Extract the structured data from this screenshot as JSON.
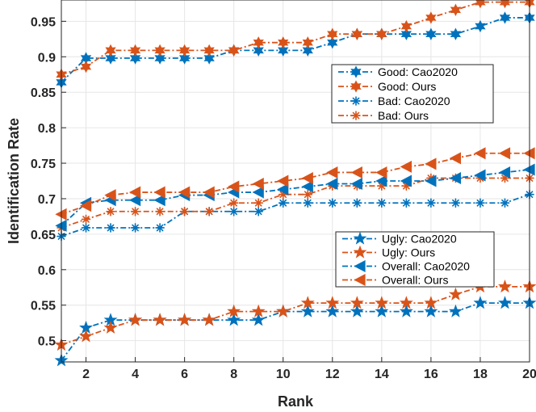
{
  "chart_data": {
    "type": "line",
    "xlabel": "Rank",
    "ylabel": "Identification Rate",
    "xlim": [
      1,
      20
    ],
    "ylim": [
      0.47,
      0.98
    ],
    "xticks": [
      2,
      4,
      6,
      8,
      10,
      12,
      14,
      16,
      18,
      20
    ],
    "yticks": [
      0.5,
      0.55,
      0.6,
      0.65,
      0.7,
      0.75,
      0.8,
      0.85,
      0.9,
      0.95
    ],
    "grid": true,
    "x": [
      1,
      2,
      3,
      4,
      5,
      6,
      7,
      8,
      9,
      10,
      11,
      12,
      13,
      14,
      15,
      16,
      17,
      18,
      19,
      20
    ],
    "colors": {
      "cao": "#0072BD",
      "ours": "#D95319"
    },
    "series": [
      {
        "name": "Good: Cao2020",
        "group": "good",
        "color": "#0072BD",
        "marker": "hexagram",
        "values": [
          0.864,
          0.898,
          0.898,
          0.898,
          0.898,
          0.898,
          0.898,
          0.909,
          0.909,
          0.909,
          0.909,
          0.92,
          0.932,
          0.932,
          0.932,
          0.932,
          0.932,
          0.943,
          0.955,
          0.955
        ]
      },
      {
        "name": "Good: Ours",
        "group": "good",
        "color": "#D95319",
        "marker": "hexagram",
        "values": [
          0.875,
          0.886,
          0.909,
          0.909,
          0.909,
          0.909,
          0.909,
          0.909,
          0.92,
          0.92,
          0.92,
          0.932,
          0.932,
          0.932,
          0.943,
          0.955,
          0.966,
          0.977,
          0.977,
          0.977
        ]
      },
      {
        "name": "Bad: Cao2020",
        "group": "good",
        "color": "#0072BD",
        "marker": "asterisk",
        "values": [
          0.647,
          0.659,
          0.659,
          0.659,
          0.659,
          0.682,
          0.682,
          0.682,
          0.682,
          0.694,
          0.694,
          0.694,
          0.694,
          0.694,
          0.694,
          0.694,
          0.694,
          0.694,
          0.694,
          0.706
        ]
      },
      {
        "name": "Bad: Ours",
        "group": "good",
        "color": "#D95319",
        "marker": "asterisk",
        "values": [
          0.659,
          0.671,
          0.682,
          0.682,
          0.682,
          0.682,
          0.682,
          0.694,
          0.694,
          0.706,
          0.706,
          0.718,
          0.718,
          0.718,
          0.718,
          0.729,
          0.729,
          0.729,
          0.729,
          0.729
        ]
      },
      {
        "name": "Ugly: Cao2020",
        "group": "ugly",
        "color": "#0072BD",
        "marker": "pentagram",
        "values": [
          0.472,
          0.518,
          0.529,
          0.529,
          0.529,
          0.529,
          0.529,
          0.529,
          0.529,
          0.541,
          0.541,
          0.541,
          0.541,
          0.541,
          0.541,
          0.541,
          0.541,
          0.553,
          0.553,
          0.553
        ]
      },
      {
        "name": "Ugly: Ours",
        "group": "ugly",
        "color": "#D95319",
        "marker": "pentagram",
        "values": [
          0.494,
          0.506,
          0.518,
          0.529,
          0.529,
          0.529,
          0.529,
          0.541,
          0.541,
          0.541,
          0.553,
          0.553,
          0.553,
          0.553,
          0.553,
          0.553,
          0.565,
          0.576,
          0.576,
          0.576
        ]
      },
      {
        "name": "Overall: Cao2020",
        "group": "ugly",
        "color": "#0072BD",
        "marker": "triangle-left",
        "values": [
          0.662,
          0.694,
          0.698,
          0.698,
          0.698,
          0.705,
          0.705,
          0.709,
          0.709,
          0.713,
          0.717,
          0.721,
          0.721,
          0.725,
          0.725,
          0.725,
          0.729,
          0.733,
          0.737,
          0.741
        ]
      },
      {
        "name": "Overall: Ours",
        "group": "ugly",
        "color": "#D95319",
        "marker": "triangle-left",
        "values": [
          0.678,
          0.69,
          0.705,
          0.709,
          0.709,
          0.709,
          0.709,
          0.717,
          0.721,
          0.725,
          0.729,
          0.737,
          0.737,
          0.737,
          0.745,
          0.749,
          0.757,
          0.764,
          0.764,
          0.764
        ]
      }
    ],
    "legends": [
      {
        "placement": "upper-right",
        "entries": [
          "Good: Cao2020",
          "Good: Ours",
          "Bad: Cao2020",
          "Bad: Ours"
        ]
      },
      {
        "placement": "middle-right",
        "entries": [
          "Ugly: Cao2020",
          "Ugly: Ours",
          "Overall: Cao2020",
          "Overall: Ours"
        ]
      }
    ]
  }
}
